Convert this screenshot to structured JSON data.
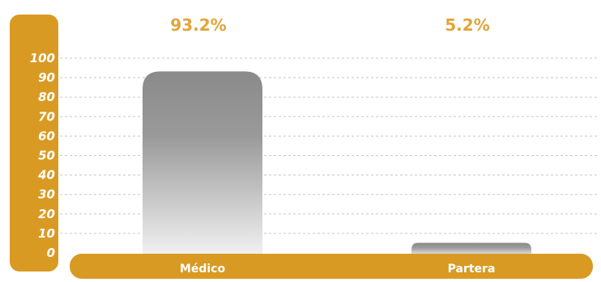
{
  "chart_data": {
    "type": "bar",
    "categories": [
      "Médico",
      "Partera"
    ],
    "values": [
      93.2,
      5.2
    ],
    "value_labels": [
      "93.2%",
      "5.2%"
    ],
    "y_ticks": [
      "100",
      "90",
      "80",
      "70",
      "60",
      "50",
      "40",
      "30",
      "20",
      "10",
      "0"
    ],
    "ylim": [
      0,
      100
    ],
    "grid": true,
    "title": "",
    "xlabel": "",
    "ylabel": ""
  },
  "colors": {
    "accent": "#d99a24",
    "value_label": "#e0a53a",
    "axis_text": "#ffffff",
    "grid": "#c8c8c8",
    "bar_top": "#8a8a8a",
    "bar_bottom": "#f2f2f2"
  }
}
